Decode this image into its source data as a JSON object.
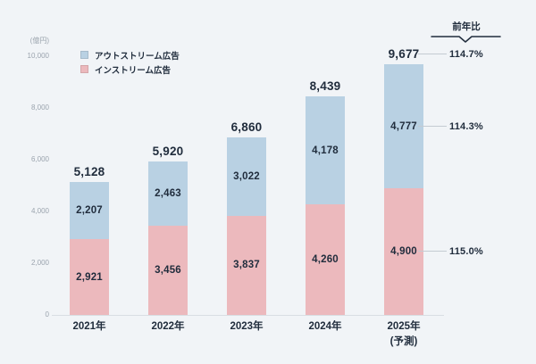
{
  "background": "#f1f4f7",
  "colors": {
    "outstream": "#b9d1e3",
    "instream": "#ecb9bd",
    "text_dark": "#212d3d",
    "text_muted": "#9ba4ae",
    "axis_line": "#d9dee3",
    "connector": "#c4cbd2",
    "bracket": "#212d3d"
  },
  "legend": [
    {
      "id": "outstream",
      "label": "アウトストリーム広告",
      "color": "#b9d1e3"
    },
    {
      "id": "instream",
      "label": "インストリーム広告",
      "color": "#ecb9bd"
    }
  ],
  "yoy": {
    "header": "前年比",
    "rows": [
      {
        "target": "total",
        "value": "114.7%"
      },
      {
        "target": "outstream",
        "value": "114.3%"
      },
      {
        "target": "instream",
        "value": "115.0%"
      }
    ]
  },
  "chart_data": {
    "type": "bar",
    "stacked": true,
    "title": "",
    "ylabel": "(億円)",
    "ylim": [
      0,
      10000
    ],
    "grid": false,
    "legend_position": "top-left",
    "yticks": [
      0,
      2000,
      4000,
      6000,
      8000,
      10000
    ],
    "ytick_labels": [
      "0",
      "2,000",
      "4,000",
      "6,000",
      "8,000",
      "10,000"
    ],
    "categories": [
      "2021年",
      "2022年",
      "2023年",
      "2024年",
      "2025年"
    ],
    "category_sublabels": [
      "",
      "",
      "",
      "",
      "(予測)"
    ],
    "series": [
      {
        "name": "インストリーム広告",
        "color": "#ecb9bd",
        "values": [
          2921,
          3456,
          3837,
          4260,
          4900
        ]
      },
      {
        "name": "アウトストリーム広告",
        "color": "#b9d1e3",
        "values": [
          2207,
          2463,
          3022,
          4178,
          4777
        ]
      }
    ],
    "totals": [
      5128,
      5920,
      6860,
      8439,
      9677
    ],
    "total_labels": [
      "5,128",
      "5,920",
      "6,860",
      "8,439",
      "9,677"
    ]
  }
}
